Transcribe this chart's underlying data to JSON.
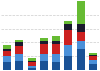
{
  "n_bars": 8,
  "bar_width": 0.65,
  "segments": [
    [
      4.5,
      5.5,
      1.2,
      5.5,
      5.0,
      8.0,
      12.0,
      3.5
    ],
    [
      3.5,
      4.0,
      1.0,
      4.0,
      4.5,
      6.5,
      5.0,
      2.5
    ],
    [
      3.0,
      4.5,
      2.5,
      5.5,
      5.5,
      8.5,
      5.0,
      2.0
    ],
    [
      1.5,
      2.0,
      0.8,
      2.0,
      2.0,
      3.5,
      4.5,
      1.0
    ],
    [
      2.0,
      1.5,
      1.5,
      1.5,
      3.0,
      2.0,
      15.0,
      1.0
    ]
  ],
  "colors": [
    "#1a5296",
    "#4a90d9",
    "#cc2020",
    "#1a1a2e",
    "#66bb33"
  ],
  "ylim": [
    0,
    40
  ],
  "gridline_y": [
    8,
    16,
    24,
    32
  ],
  "background_color": "#ffffff",
  "grid_color": "#cccccc",
  "figsize": [
    1.0,
    0.71
  ],
  "dpi": 100
}
